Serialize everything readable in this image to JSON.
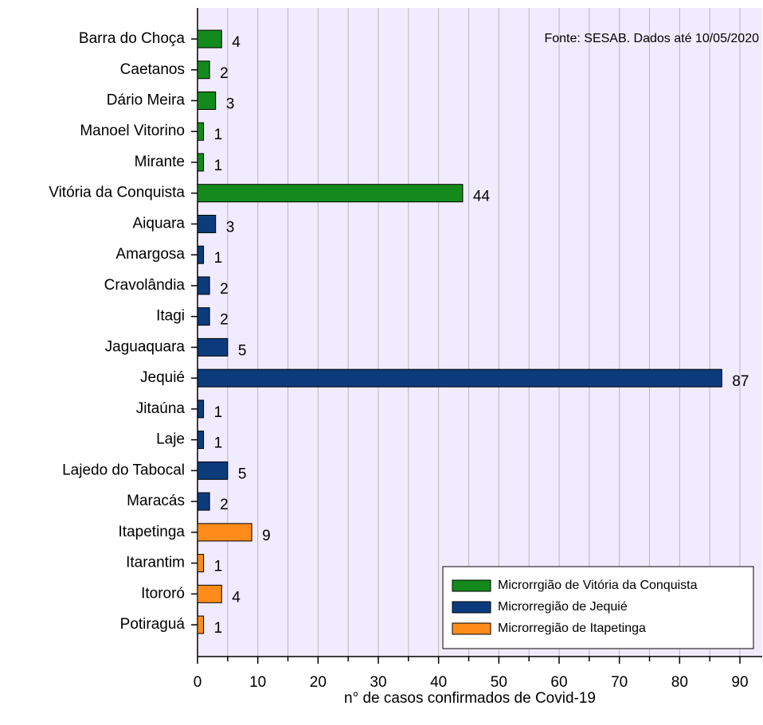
{
  "chart_data": {
    "type": "barh",
    "annotation": "Fonte: SESAB. Dados até 10/05/2020",
    "x_label": "n° de casos confirmados de Covid-19",
    "categories": [
      "Barra do Choça",
      "Caetanos",
      "Dário Meira",
      "Manoel Vitorino",
      "Mirante",
      "Vitória da Conquista",
      "Aiquara",
      "Amargosa",
      "Cravolândia",
      "Itagi",
      "Jaguaquara",
      "Jequié",
      "Jitaúna",
      "Laje",
      "Lajedo do Tabocal",
      "Maracás",
      "Itapetinga",
      "Itarantim",
      "Itororó",
      "Potiraguá"
    ],
    "series": [
      {
        "name": "Microrrgião de Vitória da Conquista",
        "color": "#158a1c",
        "values": [
          4,
          2,
          3,
          1,
          1,
          44,
          null,
          null,
          null,
          null,
          null,
          null,
          null,
          null,
          null,
          null,
          null,
          null,
          null,
          null
        ]
      },
      {
        "name": "Microrregião de Jequié",
        "color": "#0d3c7d",
        "values": [
          null,
          null,
          null,
          null,
          null,
          null,
          3,
          1,
          2,
          2,
          5,
          87,
          1,
          1,
          5,
          2,
          null,
          null,
          null,
          null
        ]
      },
      {
        "name": "Microrregião de Itapetinga",
        "color": "#ff8c1a",
        "values": [
          null,
          null,
          null,
          null,
          null,
          null,
          null,
          null,
          null,
          null,
          null,
          null,
          null,
          null,
          null,
          null,
          9,
          1,
          4,
          1
        ]
      }
    ],
    "xlim": [
      0,
      93.7
    ],
    "xticks": [
      0,
      10,
      20,
      30,
      40,
      50,
      60,
      70,
      80,
      90
    ],
    "minor_xticks": [
      5,
      15,
      25,
      35,
      45,
      55,
      65,
      75,
      85
    ],
    "grid": true,
    "legend": "lower right"
  }
}
